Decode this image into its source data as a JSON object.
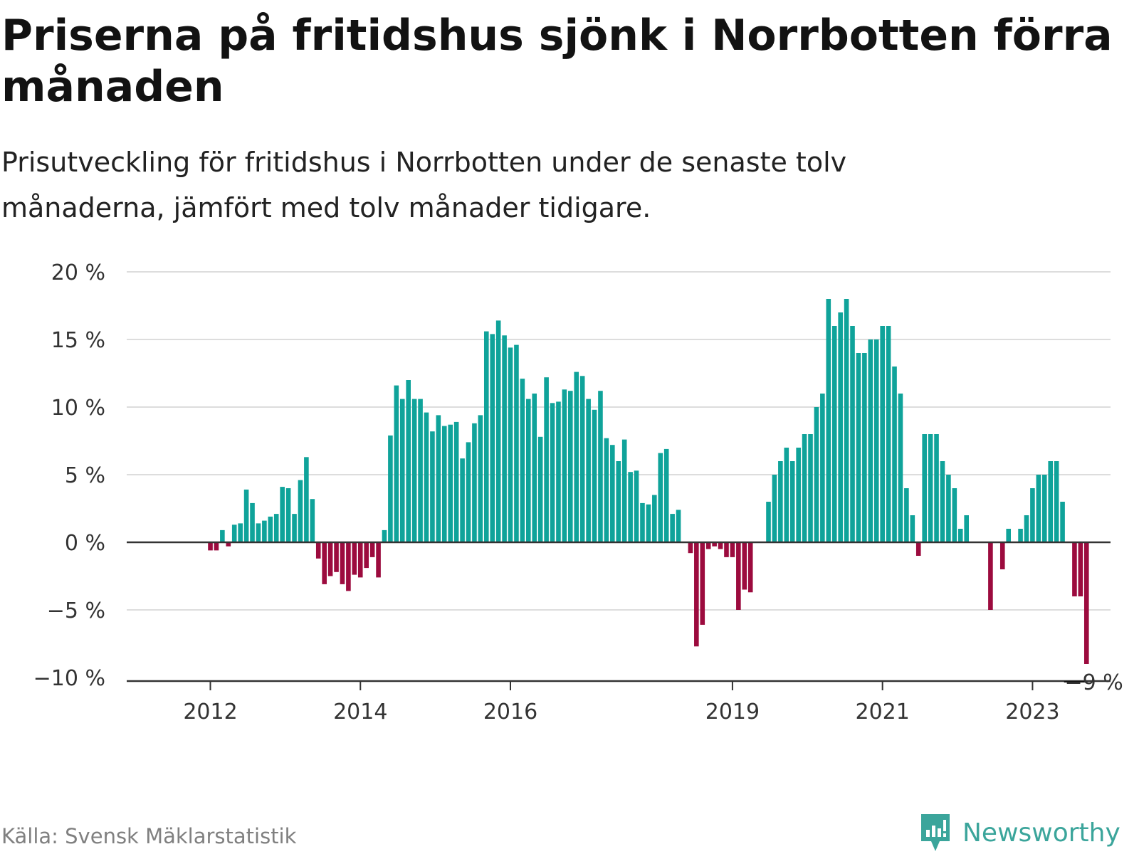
{
  "title": "Priserna på fritidshus sjönk i Norrbotten förra månaden",
  "subtitle": "Prisutveckling för fritidshus i Norrbotten under de senaste tolv månaderna, jämfört med tolv månader tidigare.",
  "source": "Källa: Svensk Mäklarstatistik",
  "brand": "Newsworthy",
  "colors": {
    "positive": "#0fa39a",
    "negative": "#9c0b3e",
    "grid": "#dddddd",
    "zero_line": "#333333",
    "brand": "#3ba59b"
  },
  "chart_data": {
    "type": "bar",
    "title": "Priserna på fritidshus sjönk i Norrbotten förra månaden",
    "ylabel": "",
    "xlabel": "",
    "ylim": [
      -10,
      20
    ],
    "y_ticks": [
      20,
      15,
      10,
      5,
      0,
      -5,
      -10
    ],
    "y_tick_labels": [
      "20 %",
      "15 %",
      "10 %",
      "5 %",
      "0 %",
      "−5 %",
      "−10 %"
    ],
    "x_tick_labels": [
      {
        "label": "2012",
        "index": 7
      },
      {
        "label": "2014",
        "index": 32
      },
      {
        "label": "2016",
        "index": 57
      },
      {
        "label": "2019",
        "index": 94
      },
      {
        "label": "2021",
        "index": 119
      },
      {
        "label": "2023",
        "index": 144
      }
    ],
    "annotation": {
      "label": "−9 %",
      "index": 154,
      "value": -9
    },
    "bar_count": 156,
    "values": [
      null,
      null,
      null,
      null,
      null,
      null,
      null,
      -0.6,
      -0.6,
      0.9,
      -0.3,
      1.3,
      1.4,
      3.9,
      2.9,
      1.4,
      1.6,
      1.9,
      2.1,
      4.1,
      4.0,
      2.1,
      4.6,
      6.3,
      3.2,
      -1.2,
      -3.1,
      -2.5,
      -2.2,
      -3.1,
      -3.6,
      -2.4,
      -2.6,
      -1.9,
      -1.1,
      -2.6,
      0.9,
      7.9,
      11.6,
      10.6,
      12.0,
      10.6,
      10.6,
      9.6,
      8.2,
      9.4,
      8.6,
      8.7,
      8.9,
      6.2,
      7.4,
      8.8,
      9.4,
      15.6,
      15.4,
      16.4,
      15.3,
      14.4,
      14.6,
      12.1,
      10.6,
      11.0,
      7.8,
      12.2,
      10.3,
      10.4,
      11.3,
      11.2,
      12.6,
      12.3,
      10.6,
      9.8,
      11.2,
      7.7,
      7.2,
      6.0,
      7.6,
      5.2,
      5.3,
      2.9,
      2.8,
      3.5,
      6.6,
      6.9,
      2.1,
      2.4,
      null,
      -0.8,
      -7.7,
      -6.1,
      -0.5,
      -0.3,
      -0.5,
      -1.1,
      -1.1,
      -5.0,
      -3.5,
      -3.7,
      null,
      null,
      3.0,
      5.0,
      6.0,
      7.0,
      6.0,
      7.0,
      8.0,
      8.0,
      10.0,
      11.0,
      18.0,
      16.0,
      17.0,
      18.0,
      16.0,
      14.0,
      14.0,
      15.0,
      15.0,
      16.0,
      16.0,
      13.0,
      11.0,
      4.0,
      2.0,
      -1.0,
      8.0,
      8.0,
      8.0,
      6.0,
      5.0,
      4.0,
      1.0,
      2.0,
      null,
      null,
      null,
      -5.0,
      null,
      -2.0,
      1.0,
      null,
      1.0,
      2.0,
      4.0,
      5.0,
      5.0,
      6.0,
      6.0,
      3.0,
      null,
      -4.0,
      -4.0,
      -9.0,
      null
    ]
  }
}
